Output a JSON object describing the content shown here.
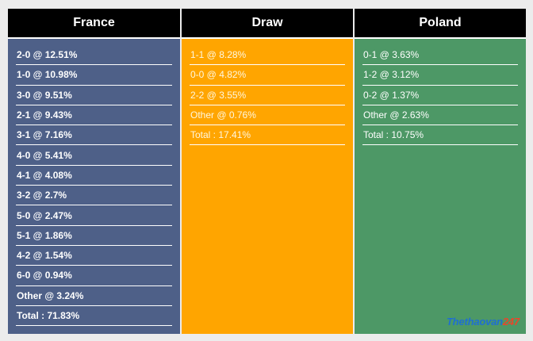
{
  "columns": [
    {
      "title": "France",
      "rows": [
        "2-0 @ 12.51%",
        "1-0 @ 10.98%",
        "3-0 @ 9.51%",
        "2-1 @ 9.43%",
        "3-1 @ 7.16%",
        "4-0 @ 5.41%",
        "4-1 @ 4.08%",
        "3-2 @ 2.7%",
        "5-0 @ 2.47%",
        "5-1 @ 1.86%",
        "4-2 @ 1.54%",
        "6-0 @ 0.94%",
        "Other @ 3.24%",
        "Total : 71.83%"
      ]
    },
    {
      "title": "Draw",
      "rows": [
        "1-1 @ 8.28%",
        "0-0 @ 4.82%",
        "2-2 @ 3.55%",
        "Other @ 0.76%",
        "Total : 17.41%"
      ]
    },
    {
      "title": "Poland",
      "rows": [
        "0-1 @ 3.63%",
        "1-2 @ 3.12%",
        "0-2 @ 1.37%",
        "Other @ 2.63%",
        "Total : 10.75%"
      ]
    }
  ],
  "watermark": {
    "main": "Thethaovan",
    "accent": "247"
  },
  "colors": {
    "header": "#000000",
    "france": "#4e6088",
    "draw": "#ffa500",
    "poland": "#4d9866"
  }
}
